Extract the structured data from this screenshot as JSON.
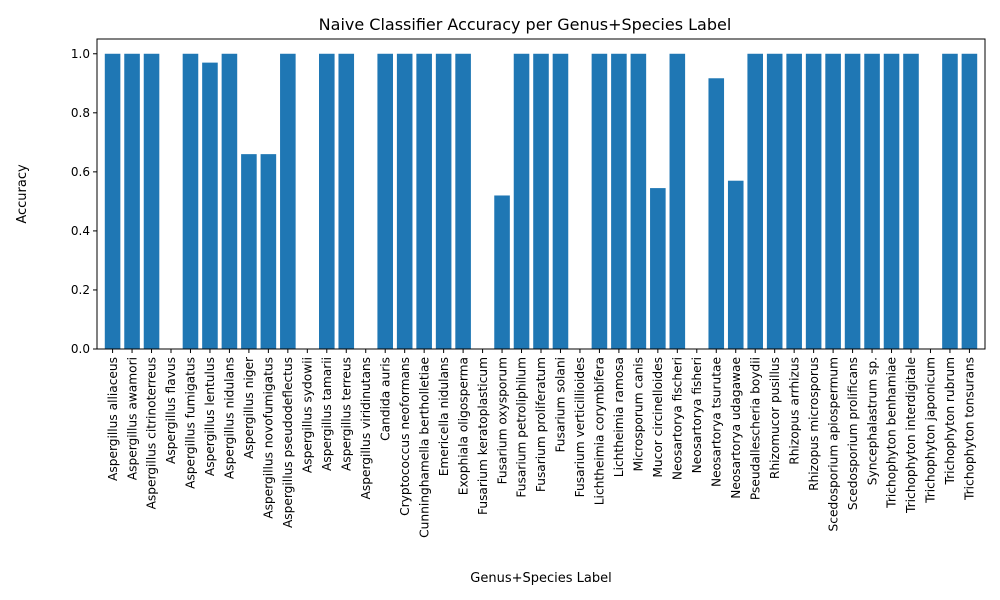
{
  "chart_data": {
    "type": "bar",
    "title": "Naive Classifier Accuracy per Genus+Species Label",
    "xlabel": "Genus+Species Label",
    "ylabel": "Accuracy",
    "ylim": [
      0,
      1.05
    ],
    "yticks": [
      "0.0",
      "0.2",
      "0.4",
      "0.6",
      "0.8",
      "1.0"
    ],
    "grid": false,
    "bar_color": "#1f77b4",
    "categories": [
      "Aspergillus alliaceus",
      "Aspergillus awamori",
      "Aspergillus citrinoterreus",
      "Aspergillus flavus",
      "Aspergillus fumigatus",
      "Aspergillus lentulus",
      "Aspergillus nidulans",
      "Aspergillus niger",
      "Aspergillus novofumigatus",
      "Aspergillus pseudodeflectus",
      "Aspergillus sydowii",
      "Aspergillus tamarii",
      "Aspergillus terreus",
      "Aspergillus viridinutans",
      "Candida auris",
      "Cryptococcus neoformans",
      "Cunninghamella bertholletiae",
      "Emericella nidulans",
      "Exophiala oligosperma",
      "Fusarium keratoplasticum",
      "Fusarium oxysporum",
      "Fusarium petroliphilum",
      "Fusarium proliferatum",
      "Fusarium solani",
      "Fusarium verticillioides",
      "Lichtheimia corymbifera",
      "Lichtheimia ramosa",
      "Microsporum canis",
      "Mucor circinelloides",
      "Neosartorya fischeri",
      "Neosartorya fisheri",
      "Neosartorya tsurutae",
      "Neosartorya udagawae",
      "Pseudallescheria boydii",
      "Rhizomucor pusillus",
      "Rhizopus arrhizus",
      "Rhizopus microsporus",
      "Scedosporium apiospermum",
      "Scedosporium prolificans",
      "Syncephalastrum sp.",
      "Trichophyton benhamiae",
      "Trichophyton interdigitale",
      "Trichophyton japonicum",
      "Trichophyton rubrum",
      "Trichophyton tonsurans"
    ],
    "values": [
      1.0,
      1.0,
      1.0,
      0.0,
      1.0,
      0.97,
      1.0,
      0.66,
      0.66,
      1.0,
      0.0,
      1.0,
      1.0,
      0.0,
      1.0,
      1.0,
      1.0,
      1.0,
      1.0,
      0.0,
      0.52,
      1.0,
      1.0,
      1.0,
      0.0,
      1.0,
      1.0,
      1.0,
      0.545,
      1.0,
      0.0,
      0.917,
      0.57,
      1.0,
      1.0,
      1.0,
      1.0,
      1.0,
      1.0,
      1.0,
      1.0,
      1.0,
      0.0,
      1.0,
      1.0
    ]
  }
}
